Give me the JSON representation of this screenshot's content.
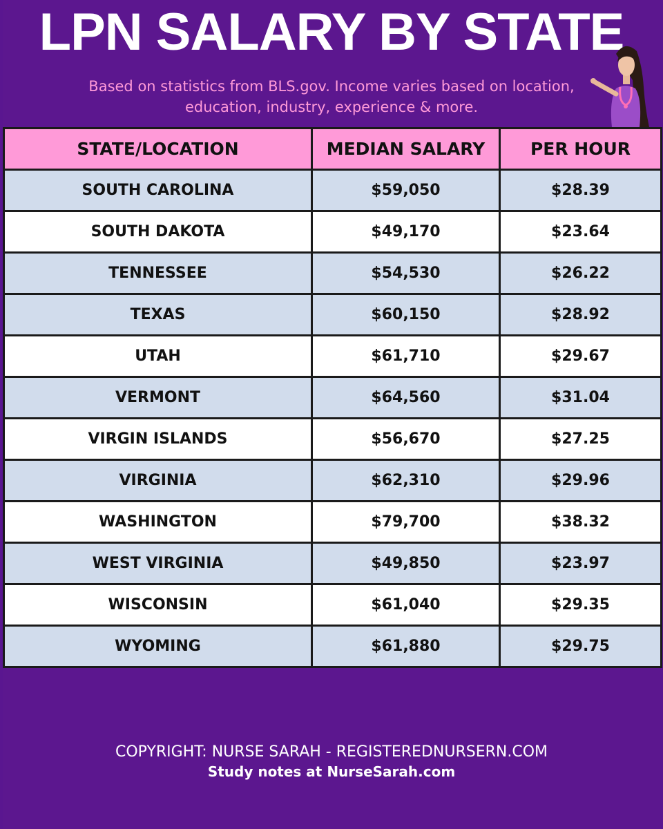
{
  "header": {
    "title": "LPN SALARY BY STATE",
    "subtitle": "Based on statistics from BLS.gov. Income varies based on location, education, industry, experience & more."
  },
  "table": {
    "columns": [
      "STATE/LOCATION",
      "MEDIAN SALARY",
      "PER HOUR"
    ],
    "rows": [
      [
        "SOUTH CAROLINA",
        "$59,050",
        "$28.39"
      ],
      [
        "SOUTH DAKOTA",
        "$49,170",
        "$23.64"
      ],
      [
        "TENNESSEE",
        "$54,530",
        "$26.22"
      ],
      [
        "TEXAS",
        "$60,150",
        "$28.92"
      ],
      [
        "UTAH",
        "$61,710",
        "$29.67"
      ],
      [
        "VERMONT",
        "$64,560",
        "$31.04"
      ],
      [
        "VIRGIN ISLANDS",
        "$56,670",
        "$27.25"
      ],
      [
        "VIRGINIA",
        "$62,310",
        "$29.96"
      ],
      [
        "WASHINGTON",
        "$79,700",
        "$38.32"
      ],
      [
        "WEST VIRGINIA",
        "$49,850",
        "$23.97"
      ],
      [
        "WISCONSIN",
        "$61,040",
        "$29.35"
      ],
      [
        "WYOMING",
        "$61,880",
        "$29.75"
      ]
    ]
  },
  "footer": {
    "copyright": "COPYRIGHT: NURSE SARAH - REGISTEREDNURSERN.COM",
    "study_notes": "Study notes at NurseSarah.com"
  },
  "colors": {
    "background": "#5c178f",
    "header_row": "#ff9ad8",
    "row_shaded": "#d1dcec",
    "row_plain": "#ffffff",
    "subtitle": "#ff9ad8"
  },
  "icons": {
    "avatar": "nurse-avatar-icon"
  }
}
